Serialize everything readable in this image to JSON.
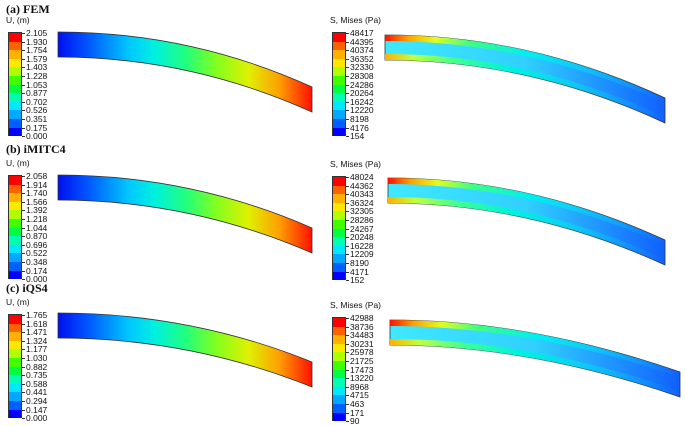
{
  "panels": [
    {
      "title": "(a) FEM",
      "disp_legend": {
        "title": "U, (m)",
        "values": [
          "2.105",
          "1.930",
          "1.754",
          "1.579",
          "1.403",
          "1.228",
          "1.053",
          "0.877",
          "0.702",
          "0.526",
          "0.351",
          "0.175",
          "0.000"
        ]
      },
      "stress_legend": {
        "title": "S, Mises (Pa)",
        "values": [
          "48417",
          "44395",
          "40374",
          "36352",
          "32330",
          "28308",
          "24286",
          "20264",
          "16242",
          "12220",
          "8198",
          "4176",
          "154"
        ]
      }
    },
    {
      "title": "(b) iMITC4",
      "disp_legend": {
        "title": "U, (m)",
        "values": [
          "2.058",
          "1.914",
          "1.740",
          "1.566",
          "1.392",
          "1.218",
          "1.044",
          "0.870",
          "0.696",
          "0.522",
          "0.348",
          "0.174",
          "0.000"
        ]
      },
      "stress_legend": {
        "title": "S, Mises (Pa)",
        "values": [
          "48024",
          "44362",
          "40343",
          "36324",
          "32305",
          "28286",
          "24267",
          "20248",
          "16228",
          "12209",
          "8190",
          "4171",
          "152"
        ]
      }
    },
    {
      "title": "(c) iQS4",
      "disp_legend": {
        "title": "U, (m)",
        "values": [
          "1.765",
          "1.618",
          "1.471",
          "1.324",
          "1.177",
          "1.030",
          "0.882",
          "0.735",
          "0.588",
          "0.441",
          "0.294",
          "0.147",
          "0.000"
        ]
      },
      "stress_legend": {
        "title": "S, Mises (Pa)",
        "values": [
          "42988",
          "38736",
          "34483",
          "30231",
          "25978",
          "21725",
          "17473",
          "13220",
          "8968",
          "4715",
          "463",
          "171",
          "90"
        ]
      }
    }
  ],
  "colors": {
    "contour": [
      "#0000ff",
      "#0060ff",
      "#00a8ff",
      "#00e8ff",
      "#00ffb0",
      "#00ff40",
      "#40ff00",
      "#b0ff00",
      "#ffe800",
      "#ffb000",
      "#ff6000",
      "#ff0000"
    ]
  }
}
